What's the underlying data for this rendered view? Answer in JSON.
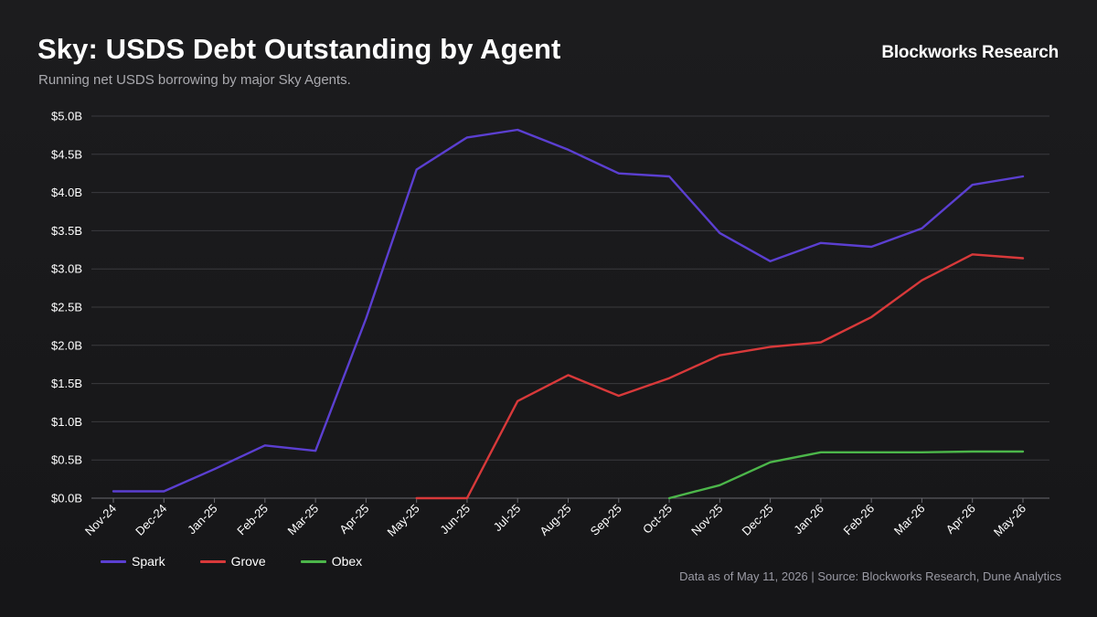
{
  "header": {
    "title": "Sky: USDS Debt Outstanding by Agent",
    "subtitle": "Running net USDS borrowing by major Sky Agents.",
    "brand": "Blockworks Research"
  },
  "footer": {
    "source": "Data as of May 11, 2026 | Source: Blockworks Research, Dune Analytics"
  },
  "colors": {
    "Spark": "#5b3fd1",
    "Grove": "#d8393a",
    "Obex": "#4cb64a",
    "grid": "#3a3a3e",
    "axis": "#6a6a70"
  },
  "chart_data": {
    "type": "line",
    "title": "Sky: USDS Debt Outstanding by Agent",
    "subtitle": "Running net USDS borrowing by major Sky Agents.",
    "xlabel": "",
    "ylabel": "",
    "ylim": [
      0,
      5.0
    ],
    "yticks": [
      0,
      0.5,
      1.0,
      1.5,
      2.0,
      2.5,
      3.0,
      3.5,
      4.0,
      4.5,
      5.0
    ],
    "ytick_labels": [
      "$0.0B",
      "$0.5B",
      "$1.0B",
      "$1.5B",
      "$2.0B",
      "$2.5B",
      "$3.0B",
      "$3.5B",
      "$4.0B",
      "$4.5B",
      "$5.0B"
    ],
    "grid": true,
    "legend": "bottom-left",
    "categories": [
      "Nov-24",
      "Dec-24",
      "Jan-25",
      "Feb-25",
      "Mar-25",
      "Apr-25",
      "May-25",
      "Jun-25",
      "Jul-25",
      "Aug-25",
      "Sep-25",
      "Oct-25",
      "Nov-25",
      "Dec-25",
      "Jan-26",
      "Feb-26",
      "Mar-26",
      "Apr-26",
      "May-26"
    ],
    "series": [
      {
        "name": "Spark",
        "values": [
          0.09,
          0.09,
          0.38,
          0.69,
          0.62,
          2.35,
          4.3,
          4.72,
          4.82,
          4.56,
          4.25,
          4.21,
          3.47,
          3.1,
          3.34,
          3.29,
          3.53,
          4.1,
          4.21
        ]
      },
      {
        "name": "Grove",
        "values": [
          null,
          null,
          null,
          null,
          null,
          null,
          0.0,
          0.0,
          1.27,
          1.61,
          1.34,
          1.57,
          1.87,
          1.98,
          2.04,
          2.37,
          2.85,
          3.19,
          3.14
        ]
      },
      {
        "name": "Obex",
        "values": [
          null,
          null,
          null,
          null,
          null,
          null,
          null,
          null,
          null,
          null,
          null,
          0.0,
          0.17,
          0.47,
          0.6,
          0.6,
          0.6,
          0.61,
          0.61
        ]
      }
    ]
  }
}
